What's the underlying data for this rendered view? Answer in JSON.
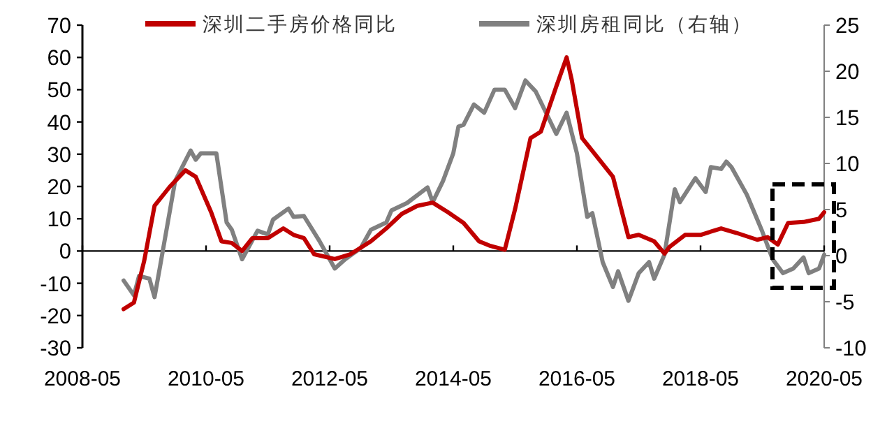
{
  "chart_data": {
    "type": "line",
    "x": [
      "2009-01",
      "2009-03",
      "2009-05",
      "2009-07",
      "2009-10",
      "2010-01",
      "2010-03",
      "2010-06",
      "2010-08",
      "2010-10",
      "2010-12",
      "2011-02",
      "2011-05",
      "2011-08",
      "2011-10",
      "2011-12",
      "2012-02",
      "2012-06",
      "2012-09",
      "2013-01",
      "2013-04",
      "2013-07",
      "2013-10",
      "2014-01",
      "2014-04",
      "2014-07",
      "2014-10",
      "2014-12",
      "2015-03",
      "2015-05",
      "2015-08",
      "2015-10",
      "2016-01",
      "2016-03",
      "2016-04",
      "2016-06",
      "2016-09",
      "2016-12",
      "2017-03",
      "2017-05",
      "2017-08",
      "2017-10",
      "2017-11",
      "2018-02",
      "2018-05",
      "2018-09",
      "2018-12",
      "2019-04",
      "2019-06",
      "2019-08",
      "2019-10",
      "2020-01",
      "2020-04",
      "2020-05"
    ],
    "series": [
      {
        "name": "深圳二手房价格同比",
        "color": "#c00000",
        "values": [
          -18,
          -16,
          -3,
          14,
          20,
          25,
          23,
          12,
          3,
          2.5,
          0,
          4,
          4,
          7,
          5,
          4,
          -1,
          -2.5,
          -1,
          3,
          7,
          11.5,
          14,
          15,
          12,
          8.7,
          3,
          1.7,
          0.4,
          13,
          35,
          37,
          51,
          60,
          53,
          35,
          29,
          23,
          4.3,
          5,
          3,
          -0.8,
          1.3,
          5,
          5,
          7,
          5.6,
          3.5,
          4.3,
          2,
          8.7,
          9,
          10,
          12
        ]
      },
      {
        "name": "深圳房租同比（右轴）",
        "color": "#808080",
        "axis": "y2",
        "x": [
          "2009-01",
          "2009-03",
          "2009-04",
          "2009-06",
          "2009-07",
          "2009-08",
          "2009-11",
          "2010-02",
          "2010-03",
          "2010-04",
          "2010-07",
          "2010-09",
          "2010-10",
          "2010-12",
          "2011-03",
          "2011-05",
          "2011-06",
          "2011-09",
          "2011-10",
          "2011-12",
          "2012-03",
          "2012-06",
          "2012-08",
          "2012-11",
          "2013-01",
          "2013-04",
          "2013-05",
          "2013-08",
          "2013-12",
          "2014-01",
          "2014-03",
          "2014-05",
          "2014-06",
          "2014-07",
          "2014-09",
          "2014-11",
          "2015-01",
          "2015-03",
          "2015-05",
          "2015-07",
          "2015-09",
          "2016-01",
          "2016-03",
          "2016-05",
          "2016-07",
          "2016-08",
          "2016-10",
          "2016-12",
          "2017-01",
          "2017-03",
          "2017-05",
          "2017-07",
          "2017-08",
          "2017-10",
          "2017-12",
          "2018-01",
          "2018-04",
          "2018-06",
          "2018-07",
          "2018-09",
          "2018-10",
          "2018-11",
          "2019-02",
          "2019-05",
          "2019-07",
          "2019-09",
          "2019-11",
          "2020-01",
          "2020-02",
          "2020-04",
          "2020-05"
        ],
        "values": [
          -2.7,
          -4.3,
          -2.2,
          -2.5,
          -4.5,
          -1.4,
          8.1,
          11.4,
          10.4,
          11.1,
          11.1,
          3.6,
          2.8,
          -0.4,
          2.7,
          2.3,
          3.9,
          5.1,
          4.2,
          4.3,
          1.6,
          -1.4,
          -0.4,
          0.8,
          2.8,
          3.6,
          4.9,
          5.7,
          7.4,
          5.8,
          8.1,
          11.1,
          14,
          14.2,
          16.4,
          15.5,
          18,
          18,
          16,
          19,
          17.8,
          13.2,
          15.5,
          11.1,
          4.2,
          4.6,
          -0.7,
          -3.4,
          -1.7,
          -4.9,
          -1.9,
          -0.7,
          -2.5,
          0.1,
          7.2,
          5.8,
          8.4,
          6.9,
          9.6,
          9.4,
          10.2,
          9.6,
          6.6,
          2.6,
          -0.4,
          -1.9,
          -1.4,
          -0.2,
          -1.9,
          -1.4,
          0.1
        ]
      }
    ],
    "xlim": [
      "2008-05",
      "2020-05"
    ],
    "xticks": [
      "2008-05",
      "2010-05",
      "2012-05",
      "2014-05",
      "2016-05",
      "2018-05",
      "2020-05"
    ],
    "ylim": [
      -30,
      70
    ],
    "yticks": [
      -30,
      -20,
      -10,
      0,
      10,
      20,
      30,
      40,
      50,
      60,
      70
    ],
    "y2lim": [
      -10,
      25
    ],
    "y2ticks": [
      -10,
      -5,
      0,
      5,
      10,
      15,
      20,
      25
    ],
    "legend": "top",
    "marker": "none",
    "line_style": "solid"
  }
}
